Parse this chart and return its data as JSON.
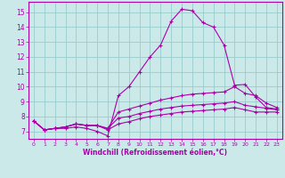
{
  "background_color": "#cce9e9",
  "line_color": "#aa00aa",
  "grid_color": "#99cccc",
  "xlabel": "Windchill (Refroidissement éolien,°C)",
  "xlabel_color": "#aa00aa",
  "tick_color": "#aa00aa",
  "spine_color": "#aa00aa",
  "xlim": [
    -0.5,
    23.5
  ],
  "ylim": [
    6.5,
    15.7
  ],
  "yticks": [
    7,
    8,
    9,
    10,
    11,
    12,
    13,
    14,
    15
  ],
  "xticks": [
    0,
    1,
    2,
    3,
    4,
    5,
    6,
    7,
    8,
    9,
    10,
    11,
    12,
    13,
    14,
    15,
    16,
    17,
    18,
    19,
    20,
    21,
    22,
    23
  ],
  "curves": [
    [
      7.7,
      7.1,
      7.2,
      7.2,
      7.3,
      7.2,
      7.0,
      6.7,
      9.4,
      10.0,
      11.0,
      12.0,
      12.8,
      14.4,
      15.2,
      15.1,
      14.3,
      14.0,
      12.8,
      10.1,
      10.15,
      9.3,
      8.6,
      8.5
    ],
    [
      7.7,
      7.1,
      7.2,
      7.3,
      7.5,
      7.4,
      7.4,
      7.2,
      8.3,
      8.5,
      8.7,
      8.9,
      9.1,
      9.25,
      9.4,
      9.5,
      9.55,
      9.6,
      9.65,
      10.0,
      9.55,
      9.4,
      8.9,
      8.6
    ],
    [
      7.7,
      7.1,
      7.2,
      7.3,
      7.5,
      7.4,
      7.4,
      7.2,
      7.9,
      8.0,
      8.2,
      8.35,
      8.5,
      8.6,
      8.7,
      8.75,
      8.8,
      8.85,
      8.9,
      9.0,
      8.75,
      8.65,
      8.55,
      8.45
    ],
    [
      7.7,
      7.1,
      7.2,
      7.3,
      7.5,
      7.4,
      7.4,
      7.1,
      7.5,
      7.65,
      7.85,
      8.0,
      8.1,
      8.2,
      8.3,
      8.35,
      8.4,
      8.45,
      8.5,
      8.6,
      8.45,
      8.3,
      8.3,
      8.3
    ]
  ]
}
